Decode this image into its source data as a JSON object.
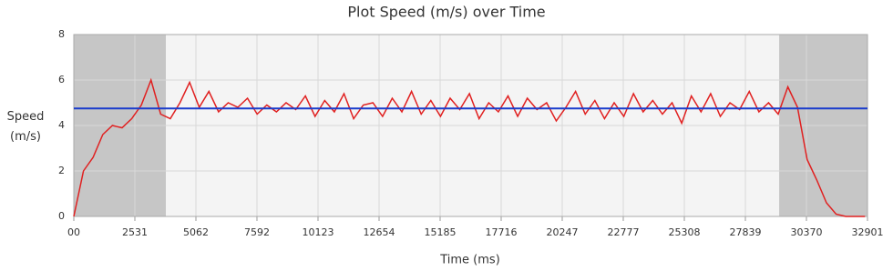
{
  "chart_data": {
    "type": "line",
    "title": "Plot Speed (m/s) over Time",
    "xlabel": "Time (ms)",
    "ylabel": "Speed (m/s)",
    "x": [
      0,
      400,
      800,
      1200,
      1600,
      2000,
      2400,
      2800,
      3200,
      3600,
      4000,
      4400,
      4800,
      5200,
      5600,
      6000,
      6400,
      6800,
      7200,
      7600,
      8000,
      8400,
      8800,
      9200,
      9600,
      10000,
      10400,
      10800,
      11200,
      11600,
      12000,
      12400,
      12800,
      13200,
      13600,
      14000,
      14400,
      14800,
      15200,
      15600,
      16000,
      16400,
      16800,
      17200,
      17600,
      18000,
      18400,
      18800,
      19200,
      19600,
      20000,
      20400,
      20800,
      21200,
      21600,
      22000,
      22400,
      22800,
      23200,
      23600,
      24000,
      24400,
      24800,
      25200,
      25600,
      26000,
      26400,
      26800,
      27200,
      27600,
      28000,
      28400,
      28800,
      29200,
      29600,
      30000,
      30400,
      30800,
      31200,
      31600,
      32000,
      32400,
      32800
    ],
    "series": [
      {
        "name": "Speed",
        "color": "#e02020",
        "values": [
          0,
          2.0,
          2.6,
          3.6,
          4.0,
          3.9,
          4.3,
          4.9,
          6.0,
          4.5,
          4.3,
          5.0,
          5.9,
          4.8,
          5.5,
          4.6,
          5.0,
          4.8,
          5.2,
          4.5,
          4.9,
          4.6,
          5.0,
          4.7,
          5.3,
          4.4,
          5.1,
          4.6,
          5.4,
          4.3,
          4.9,
          5.0,
          4.4,
          5.2,
          4.6,
          5.5,
          4.5,
          5.1,
          4.4,
          5.2,
          4.7,
          5.4,
          4.3,
          5.0,
          4.6,
          5.3,
          4.4,
          5.2,
          4.7,
          5.0,
          4.2,
          4.8,
          5.5,
          4.5,
          5.1,
          4.3,
          5.0,
          4.4,
          5.4,
          4.6,
          5.1,
          4.5,
          5.0,
          4.1,
          5.3,
          4.6,
          5.4,
          4.4,
          5.0,
          4.7,
          5.5,
          4.6,
          5.0,
          4.5,
          5.7,
          4.8,
          2.5,
          1.6,
          0.6,
          0.1,
          0,
          0,
          0
        ]
      }
    ],
    "hline": {
      "value": 4.75,
      "color": "#1a3ccc"
    },
    "shaded_ranges": [
      [
        0,
        3815
      ],
      [
        29240,
        32901
      ]
    ],
    "xlim": [
      0,
      32901
    ],
    "xticks": [
      {
        "value": 0,
        "label": "00"
      },
      2531,
      5062,
      7592,
      10123,
      12654,
      15185,
      17716,
      20247,
      22777,
      25308,
      27839,
      30370,
      32901
    ],
    "ylim": [
      0,
      8
    ],
    "yticks": [
      0,
      2,
      4,
      6,
      8
    ],
    "grid": true
  }
}
